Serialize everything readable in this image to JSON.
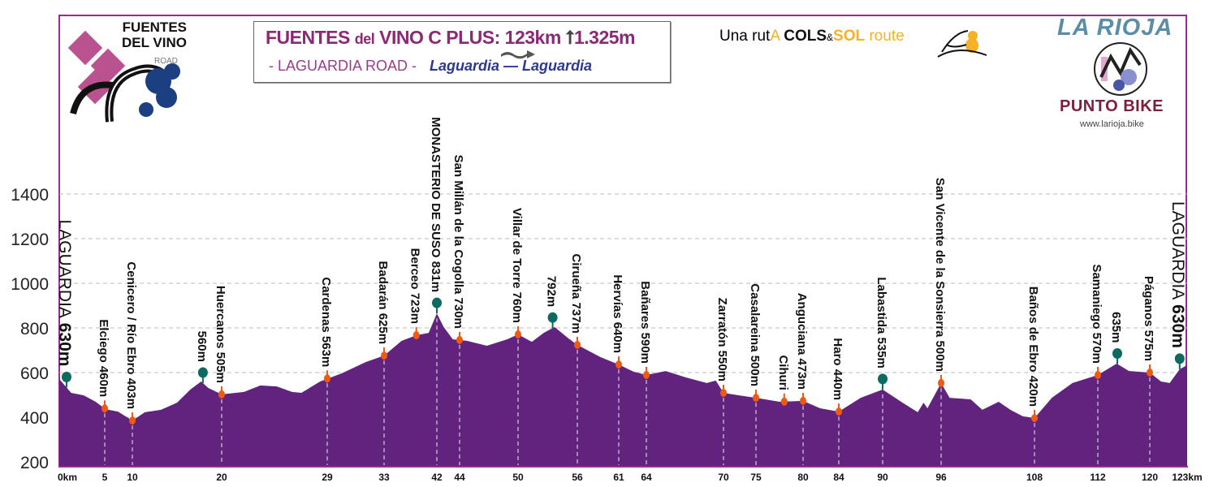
{
  "header": {
    "title_part1": "FUENTES",
    "title_part2": "del",
    "title_part3": "VINO C PLUS: 123km",
    "title_gain": "1.325m",
    "subtitle_road": "- LAGUARDIA ROAD -",
    "subtitle_route": "Laguardia — Laguardia",
    "cols_prefix": "Una rut",
    "cols_a": "A",
    "cols_cols": "COLS",
    "cols_amp": "&",
    "cols_sol": "SOL",
    "cols_route": "route",
    "logo_line1": "FUENTES",
    "logo_line2": "DEL VINO",
    "logo_road": "ROAD",
    "brand_title": "LA RIOJA",
    "brand_sub": "PUNTO BIKE",
    "brand_web": "www.larioja.bike"
  },
  "colors": {
    "fill": "#62237e",
    "frame": "#9c2a8a",
    "marker_orange": "#ee5a12",
    "marker_green": "#0c6a60",
    "title_purple": "#8b2a74",
    "route_blue": "#2b3990"
  },
  "chart_data": {
    "type": "area",
    "ylim": [
      180,
      1500
    ],
    "xlim": [
      0,
      123
    ],
    "yticks": [
      200,
      400,
      600,
      800,
      1000,
      1200,
      1400
    ],
    "grid": true,
    "xticks": [
      {
        "km": 0,
        "label": "0km"
      },
      {
        "km": 5,
        "label": "5"
      },
      {
        "km": 10,
        "label": "10"
      },
      {
        "km": 20,
        "label": "20"
      },
      {
        "km": 29,
        "label": "29"
      },
      {
        "km": 33,
        "label": "33"
      },
      {
        "km": 42,
        "label": "42"
      },
      {
        "km": 44,
        "label": "44"
      },
      {
        "km": 50,
        "label": "50"
      },
      {
        "km": 56,
        "label": "56"
      },
      {
        "km": 61,
        "label": "61"
      },
      {
        "km": 64,
        "label": "64"
      },
      {
        "km": 70,
        "label": "70"
      },
      {
        "km": 75,
        "label": "75"
      },
      {
        "km": 80,
        "label": "80"
      },
      {
        "km": 84,
        "label": "84"
      },
      {
        "km": 90,
        "label": "90"
      },
      {
        "km": 96,
        "label": "96"
      },
      {
        "km": 108,
        "label": "108"
      },
      {
        "km": 112,
        "label": "112"
      },
      {
        "km": 120,
        "label": "120"
      },
      {
        "km": 123,
        "label": "123km"
      }
    ],
    "profile": [
      [
        0,
        571
      ],
      [
        1.3,
        509
      ],
      [
        2.7,
        498
      ],
      [
        4,
        469
      ],
      [
        5.1,
        436
      ],
      [
        7.4,
        425
      ],
      [
        10,
        385
      ],
      [
        11.4,
        422
      ],
      [
        13.2,
        433
      ],
      [
        15,
        465
      ],
      [
        16.5,
        524
      ],
      [
        17.7,
        560
      ],
      [
        18.5,
        531
      ],
      [
        20,
        502
      ],
      [
        21.9,
        513
      ],
      [
        23.3,
        542
      ],
      [
        24.7,
        538
      ],
      [
        26,
        513
      ],
      [
        26.8,
        509
      ],
      [
        28.4,
        560
      ],
      [
        30,
        596
      ],
      [
        31.7,
        647
      ],
      [
        33,
        676
      ],
      [
        36,
        742
      ],
      [
        38.5,
        767
      ],
      [
        40.6,
        778
      ],
      [
        42,
        865
      ],
      [
        42.6,
        804
      ],
      [
        43.4,
        749
      ],
      [
        44.75,
        742
      ],
      [
        46.8,
        720
      ],
      [
        48.9,
        749
      ],
      [
        50,
        771
      ],
      [
        51.4,
        738
      ],
      [
        52.6,
        778
      ],
      [
        53.7,
        804
      ],
      [
        55.1,
        753
      ],
      [
        56,
        724
      ],
      [
        58.8,
        669
      ],
      [
        61,
        636
      ],
      [
        62.6,
        604
      ],
      [
        64,
        589
      ],
      [
        65.5,
        607
      ],
      [
        67.1,
        578
      ],
      [
        68.7,
        553
      ],
      [
        69.4,
        564
      ],
      [
        70,
        509
      ],
      [
        72.4,
        498
      ],
      [
        75,
        487
      ],
      [
        77.5,
        469
      ],
      [
        80,
        473
      ],
      [
        81.9,
        440
      ],
      [
        84,
        425
      ],
      [
        87,
        487
      ],
      [
        90,
        524
      ],
      [
        91.9,
        469
      ],
      [
        93.6,
        422
      ],
      [
        94.2,
        465
      ],
      [
        94.6,
        440
      ],
      [
        96,
        553
      ],
      [
        97.1,
        487
      ],
      [
        99.8,
        480
      ],
      [
        101.3,
        433
      ],
      [
        103.4,
        469
      ],
      [
        104.9,
        433
      ],
      [
        106.5,
        404
      ],
      [
        108,
        396
      ],
      [
        109.1,
        487
      ],
      [
        110.4,
        553
      ],
      [
        112,
        589
      ],
      [
        114.9,
        640
      ],
      [
        116.8,
        607
      ],
      [
        120,
        600
      ],
      [
        120.9,
        560
      ],
      [
        121.6,
        553
      ],
      [
        122.4,
        615
      ],
      [
        123,
        633
      ]
    ],
    "waypoints": [
      {
        "km": 0.8,
        "label": "LAGUARDIA",
        "elev_label": "630m",
        "type": "green",
        "big": true
      },
      {
        "km": 5,
        "label": "Elciego 460m",
        "type": "orange",
        "dashed": true
      },
      {
        "km": 10,
        "label": "Cenicero / Río Ebro 403m",
        "type": "orange",
        "dashed": true
      },
      {
        "km": 17.9,
        "label": "560m",
        "type": "green"
      },
      {
        "km": 20,
        "label": "Huercanos 505m",
        "type": "orange",
        "dashed": true
      },
      {
        "km": 29,
        "label": "Cardenas 563m",
        "type": "orange",
        "dashed": true
      },
      {
        "km": 33,
        "label": "Badarán 625m",
        "type": "orange",
        "dashed": true
      },
      {
        "km": 38.5,
        "label": "Berceo 723m",
        "type": "orange"
      },
      {
        "km": 42,
        "label": "MONASTERIO DE SUSO 831m",
        "type": "green",
        "dashed": true
      },
      {
        "km": 44,
        "label": "San Millán de la Cogolla 730m",
        "type": "orange",
        "dashed": true
      },
      {
        "km": 50,
        "label": "Villar de Torre 760m",
        "type": "orange",
        "dashed": true
      },
      {
        "km": 53.5,
        "label": "792m",
        "type": "green"
      },
      {
        "km": 56,
        "label": "Cirueña 737m",
        "type": "orange",
        "dashed": true
      },
      {
        "km": 61,
        "label": "Hervías 640m",
        "type": "orange",
        "dashed": true
      },
      {
        "km": 64,
        "label": "Bañares 590m",
        "type": "orange",
        "dashed": true
      },
      {
        "km": 70,
        "label": "Zarratón 550m",
        "type": "orange",
        "dashed": true
      },
      {
        "km": 75,
        "label": "Casalareina 500m",
        "type": "orange",
        "dashed": true
      },
      {
        "km": 78,
        "label": "Cihuri",
        "type": "orange"
      },
      {
        "km": 80,
        "label": "Anguciana 473m",
        "type": "orange",
        "dashed": true
      },
      {
        "km": 84,
        "label": "Haro 440m",
        "type": "orange",
        "dashed": true
      },
      {
        "km": 90,
        "label": "Labastida 535m",
        "type": "green",
        "dashed": true
      },
      {
        "km": 96,
        "label": "San Vicente de la Sonsierra 500m",
        "type": "orange",
        "dashed": true
      },
      {
        "km": 108,
        "label": "Baños de Ebro 420m",
        "type": "orange",
        "dashed": true
      },
      {
        "km": 112,
        "label": "Samaniego 570m",
        "type": "orange",
        "dashed": true
      },
      {
        "km": 115,
        "label": "635m",
        "type": "green"
      },
      {
        "km": 120,
        "label": "Páganos 575m",
        "type": "orange",
        "dashed": true
      },
      {
        "km": 122.4,
        "label": "LAGUARDIA",
        "elev_label": "630m",
        "type": "green",
        "big": true
      }
    ]
  }
}
